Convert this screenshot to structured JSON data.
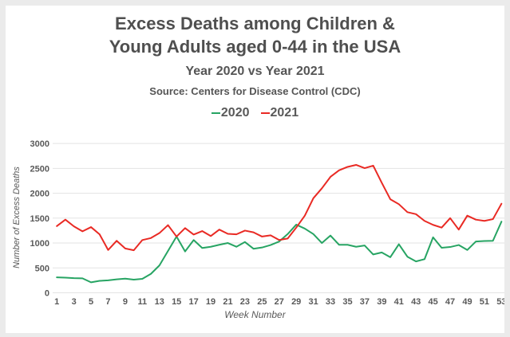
{
  "header": {
    "title_line1": "Excess Deaths among Children &",
    "title_line2": "Young Adults aged 0-44 in the USA",
    "subtitle": "Year 2020 vs Year 2021",
    "source": "Source: Centers for Disease Control (CDC)"
  },
  "chart_data": {
    "type": "line",
    "title": "Excess Deaths among Children & Young Adults aged 0-44 in the USA",
    "subtitle": "Year 2020 vs Year 2021",
    "annotation": "Source: Centers for Disease Control (CDC)",
    "xlabel": "Week Number",
    "ylabel": "Number of Excess Deaths",
    "ylim": [
      0,
      3000
    ],
    "yticks": [
      0,
      500,
      1000,
      1500,
      2000,
      2500,
      3000
    ],
    "xticks": [
      1,
      3,
      5,
      7,
      9,
      11,
      13,
      15,
      17,
      19,
      21,
      23,
      25,
      27,
      29,
      31,
      33,
      35,
      37,
      39,
      41,
      43,
      45,
      47,
      49,
      51,
      53
    ],
    "x_range": [
      1,
      53
    ],
    "grid": "horizontal",
    "legend_position": "top",
    "background": "#ffffff",
    "grid_color": "#e3e3e3",
    "series": [
      {
        "name": "2020",
        "color": "#27a463",
        "values": [
          310,
          305,
          295,
          290,
          210,
          240,
          250,
          270,
          285,
          265,
          280,
          380,
          550,
          840,
          1130,
          830,
          1060,
          900,
          925,
          965,
          1000,
          925,
          1020,
          885,
          910,
          960,
          1030,
          1180,
          1370,
          1290,
          1180,
          1000,
          1150,
          965,
          965,
          925,
          950,
          770,
          810,
          715,
          975,
          725,
          630,
          675,
          1115,
          905,
          920,
          960,
          860,
          1030,
          1040,
          1045,
          1430
        ]
      },
      {
        "name": "2021",
        "color": "#e92a24",
        "values": [
          1340,
          1470,
          1335,
          1235,
          1320,
          1175,
          860,
          1045,
          890,
          855,
          1060,
          1100,
          1200,
          1360,
          1130,
          1300,
          1170,
          1240,
          1140,
          1270,
          1185,
          1175,
          1250,
          1215,
          1130,
          1155,
          1060,
          1090,
          1310,
          1550,
          1900,
          2100,
          2330,
          2460,
          2530,
          2570,
          2505,
          2555,
          2210,
          1880,
          1780,
          1620,
          1580,
          1445,
          1365,
          1310,
          1500,
          1270,
          1550,
          1470,
          1445,
          1480,
          1790
        ]
      }
    ]
  }
}
